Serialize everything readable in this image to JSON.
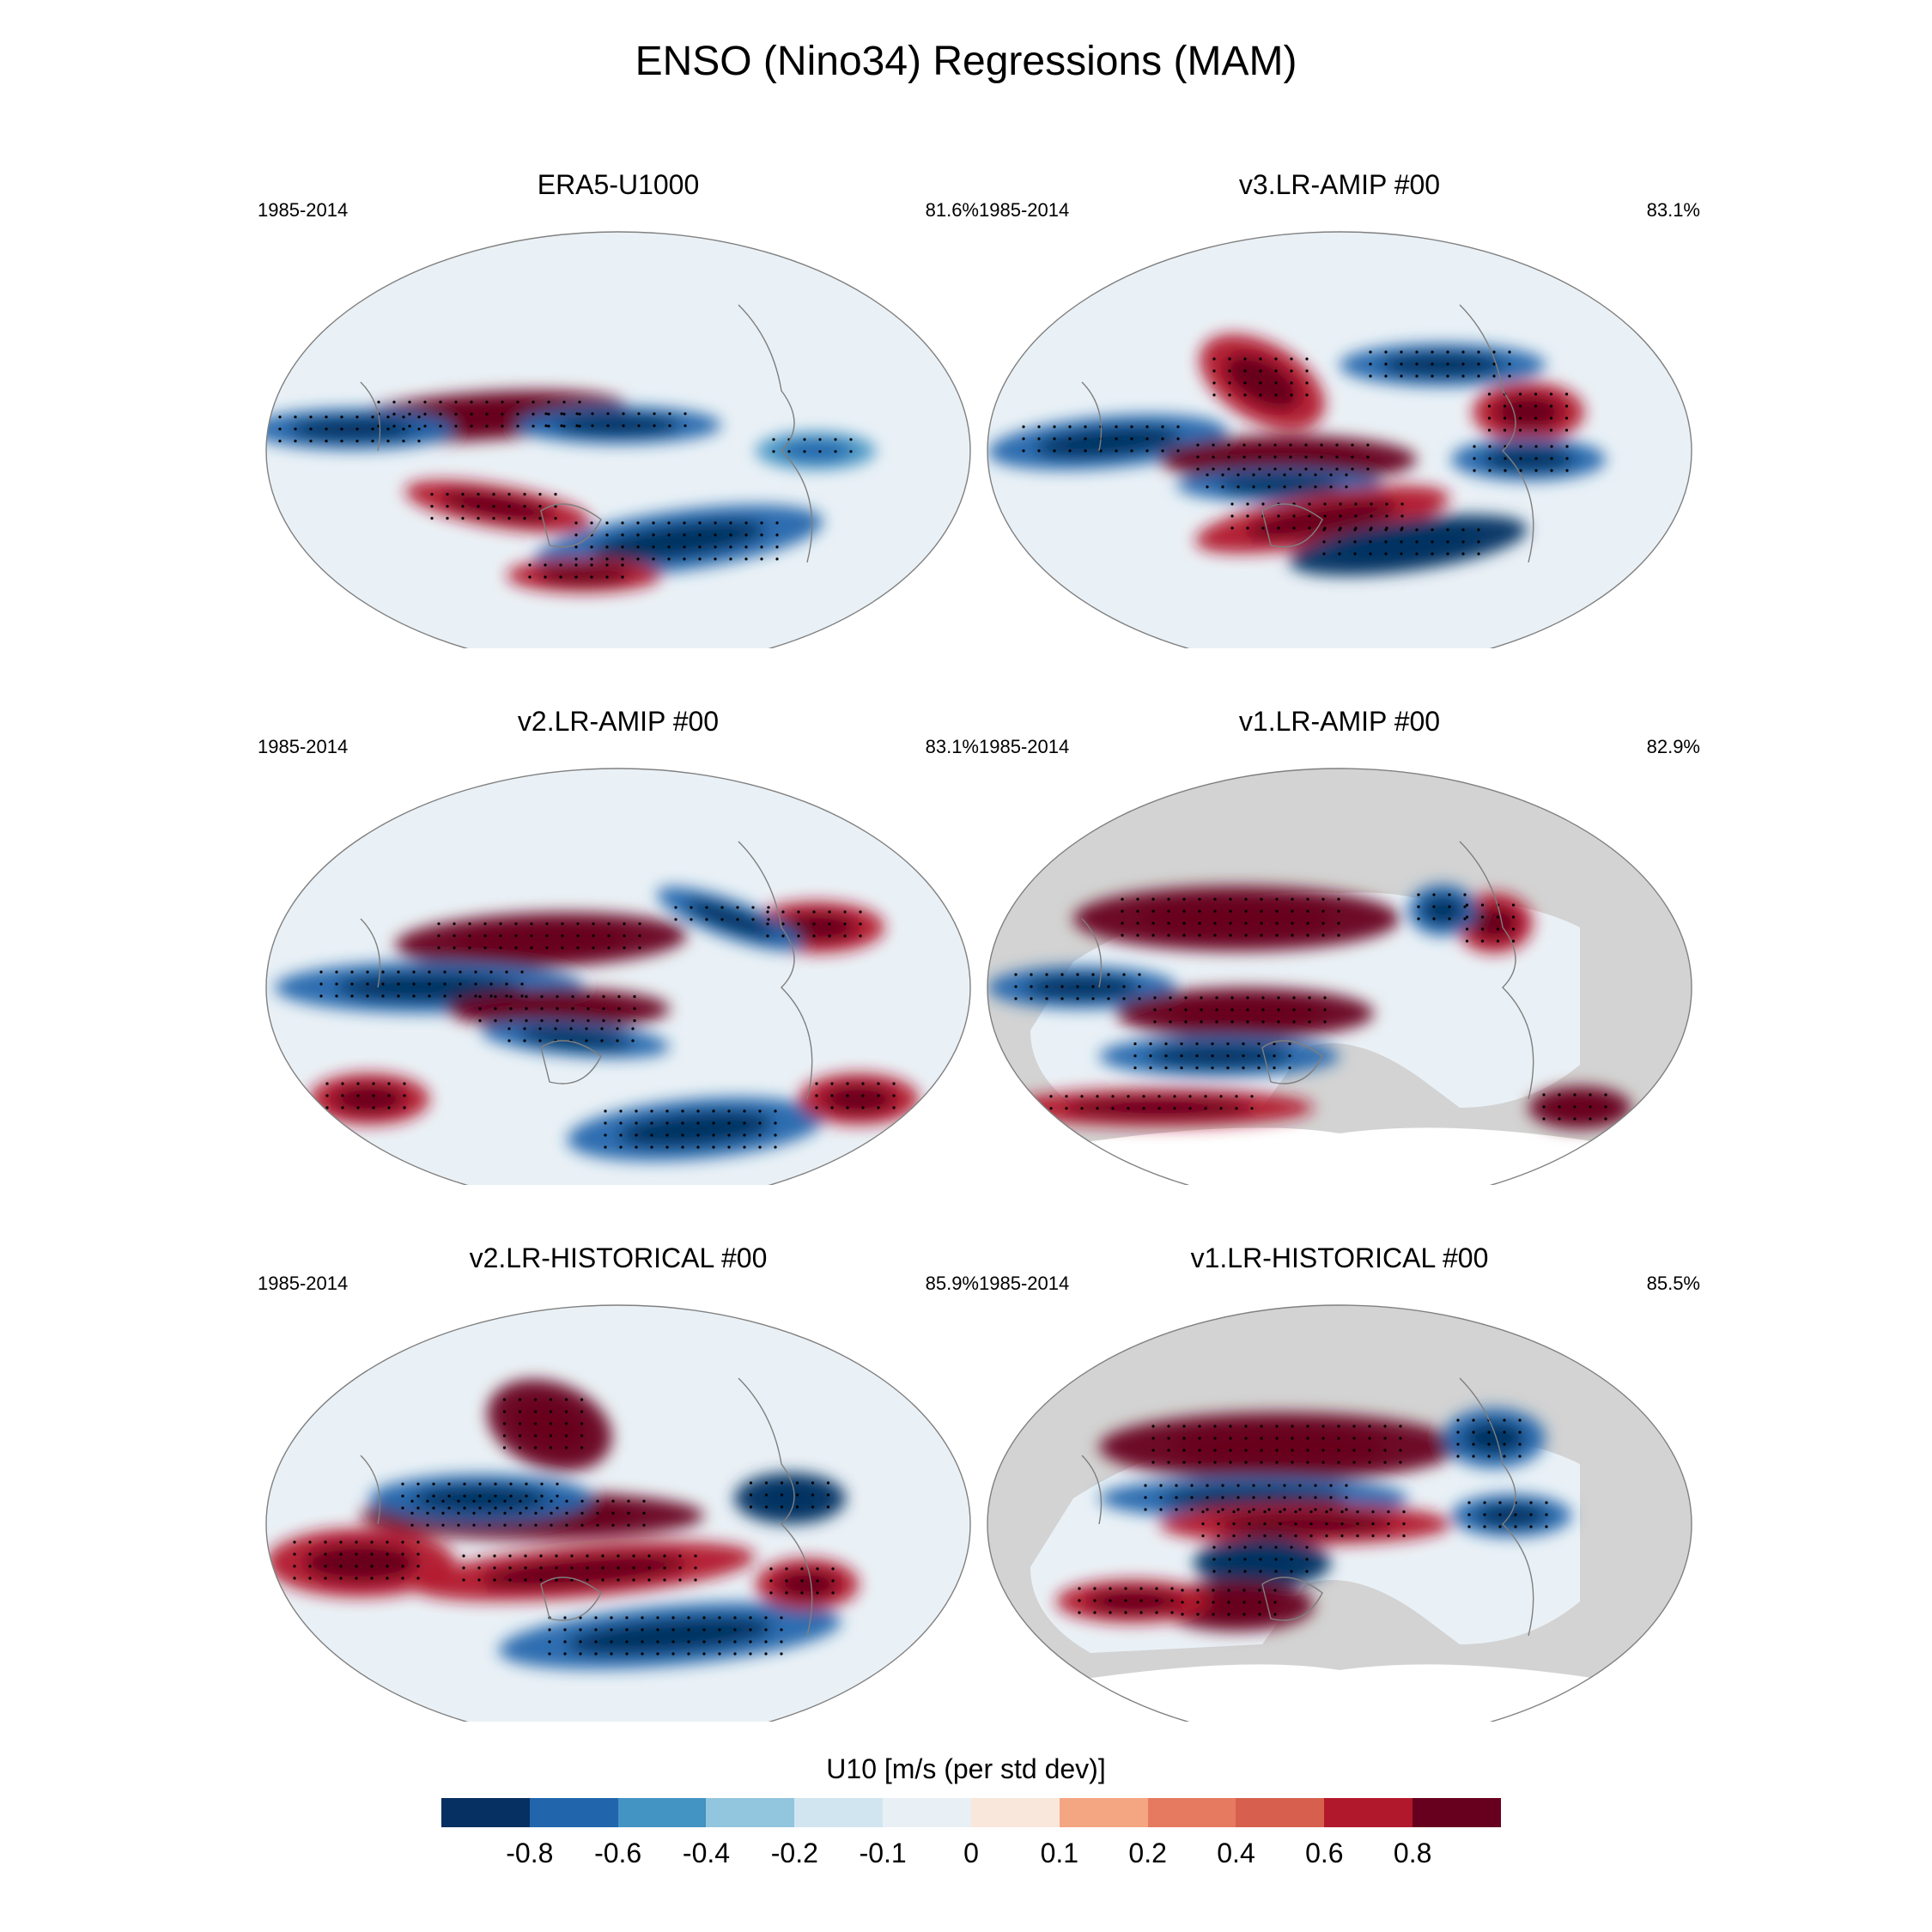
{
  "figure": {
    "title": "ENSO (Nino34) Regressions (MAM)"
  },
  "panels": [
    {
      "title": "ERA5-U1000",
      "period": "1985-2014",
      "pct": "81.6%",
      "land_masked": false
    },
    {
      "title": "v3.LR-AMIP  #00",
      "period": "1985-2014",
      "pct": "83.1%",
      "land_masked": false
    },
    {
      "title": "v2.LR-AMIP  #00",
      "period": "1985-2014",
      "pct": "83.1%",
      "land_masked": false
    },
    {
      "title": "v1.LR-AMIP  #00",
      "period": "1985-2014",
      "pct": "82.9%",
      "land_masked": true
    },
    {
      "title": "v2.LR-HISTORICAL  #00",
      "period": "1985-2014",
      "pct": "85.9%",
      "land_masked": false
    },
    {
      "title": "v1.LR-HISTORICAL  #00",
      "period": "1985-2014",
      "pct": "85.5%",
      "land_masked": true
    }
  ],
  "colorbar": {
    "title": "U10 [m/s (per std dev)]",
    "tick_labels": [
      "-0.8",
      "-0.6",
      "-0.4",
      "-0.2",
      "-0.1",
      "0",
      "0.1",
      "0.2",
      "0.4",
      "0.6",
      "0.8"
    ],
    "colors": [
      "#053061",
      "#2166ac",
      "#4393c3",
      "#92c5de",
      "#d1e5f0",
      "#e8f0f5",
      "#fae7dc",
      "#f4a582",
      "#e57a60",
      "#d6604d",
      "#b2182b",
      "#67001f"
    ],
    "land_color": "#d3d3d3",
    "outline_color": "#808080"
  },
  "chart_data": {
    "type": "heatmap",
    "title": "ENSO (Nino34) Regressions (MAM)",
    "variable": "U10 [m/s (per std dev)]",
    "levels": [
      -0.8,
      -0.6,
      -0.4,
      -0.2,
      -0.1,
      0,
      0.1,
      0.2,
      0.4,
      0.6,
      0.8
    ],
    "projection": "Robinson (global, Pacific-centered)",
    "panels": [
      {
        "name": "ERA5-U1000",
        "period": "1985-2014",
        "pattern_stat": "81.6%"
      },
      {
        "name": "v3.LR-AMIP  #00",
        "period": "1985-2014",
        "pattern_stat": "83.1%"
      },
      {
        "name": "v2.LR-AMIP  #00",
        "period": "1985-2014",
        "pattern_stat": "83.1%"
      },
      {
        "name": "v1.LR-AMIP  #00",
        "period": "1985-2014",
        "pattern_stat": "82.9%"
      },
      {
        "name": "v2.LR-HISTORICAL  #00",
        "period": "1985-2014",
        "pattern_stat": "85.9%"
      },
      {
        "name": "v1.LR-HISTORICAL  #00",
        "period": "1985-2014",
        "pattern_stat": "85.5%"
      }
    ]
  }
}
